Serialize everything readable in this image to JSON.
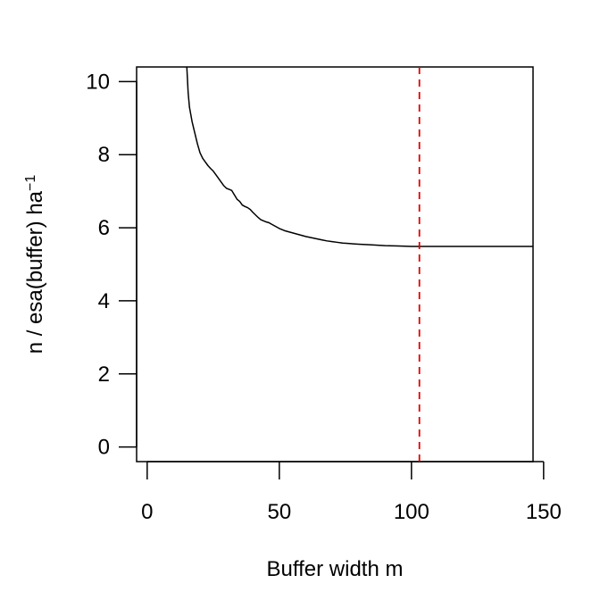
{
  "chart_data": {
    "type": "line",
    "title": "",
    "xlabel": "Buffer width  m",
    "ylabel_main": "n / esa(buffer)   ha",
    "ylabel_sup": "−1",
    "xlim": [
      -4,
      146
    ],
    "ylim": [
      -0.4,
      10.4
    ],
    "xticks": [
      0,
      50,
      100,
      150
    ],
    "yticks": [
      0,
      2,
      4,
      6,
      8,
      10
    ],
    "grid": false,
    "series": [
      {
        "color": "#000000",
        "x": [
          15,
          15.5,
          16,
          17,
          18,
          19,
          20,
          21,
          22,
          23,
          24,
          25,
          26,
          27,
          28,
          29,
          30,
          31,
          32,
          33,
          34,
          35,
          36,
          37,
          38,
          39,
          40,
          41,
          42,
          43,
          44,
          45,
          46,
          47,
          48,
          49,
          50,
          52,
          54,
          56,
          58,
          60,
          62,
          64,
          66,
          68,
          70,
          72,
          74,
          76,
          78,
          80,
          85,
          90,
          95,
          100,
          103,
          110,
          120,
          130,
          140,
          146
        ],
        "y": [
          10.4,
          9.7,
          9.3,
          8.9,
          8.6,
          8.3,
          8.05,
          7.9,
          7.8,
          7.7,
          7.62,
          7.55,
          7.45,
          7.35,
          7.25,
          7.15,
          7.08,
          7.05,
          7.02,
          6.9,
          6.78,
          6.72,
          6.62,
          6.58,
          6.55,
          6.5,
          6.42,
          6.35,
          6.28,
          6.22,
          6.19,
          6.16,
          6.14,
          6.1,
          6.06,
          6.02,
          5.98,
          5.92,
          5.88,
          5.84,
          5.8,
          5.76,
          5.73,
          5.7,
          5.67,
          5.64,
          5.62,
          5.6,
          5.58,
          5.57,
          5.56,
          5.55,
          5.53,
          5.51,
          5.5,
          5.49,
          5.49,
          5.49,
          5.49,
          5.49,
          5.49,
          5.49
        ]
      }
    ],
    "reference_line": {
      "orientation": "vertical",
      "x": 103,
      "color": "#DF0000",
      "style": "dashed"
    }
  }
}
